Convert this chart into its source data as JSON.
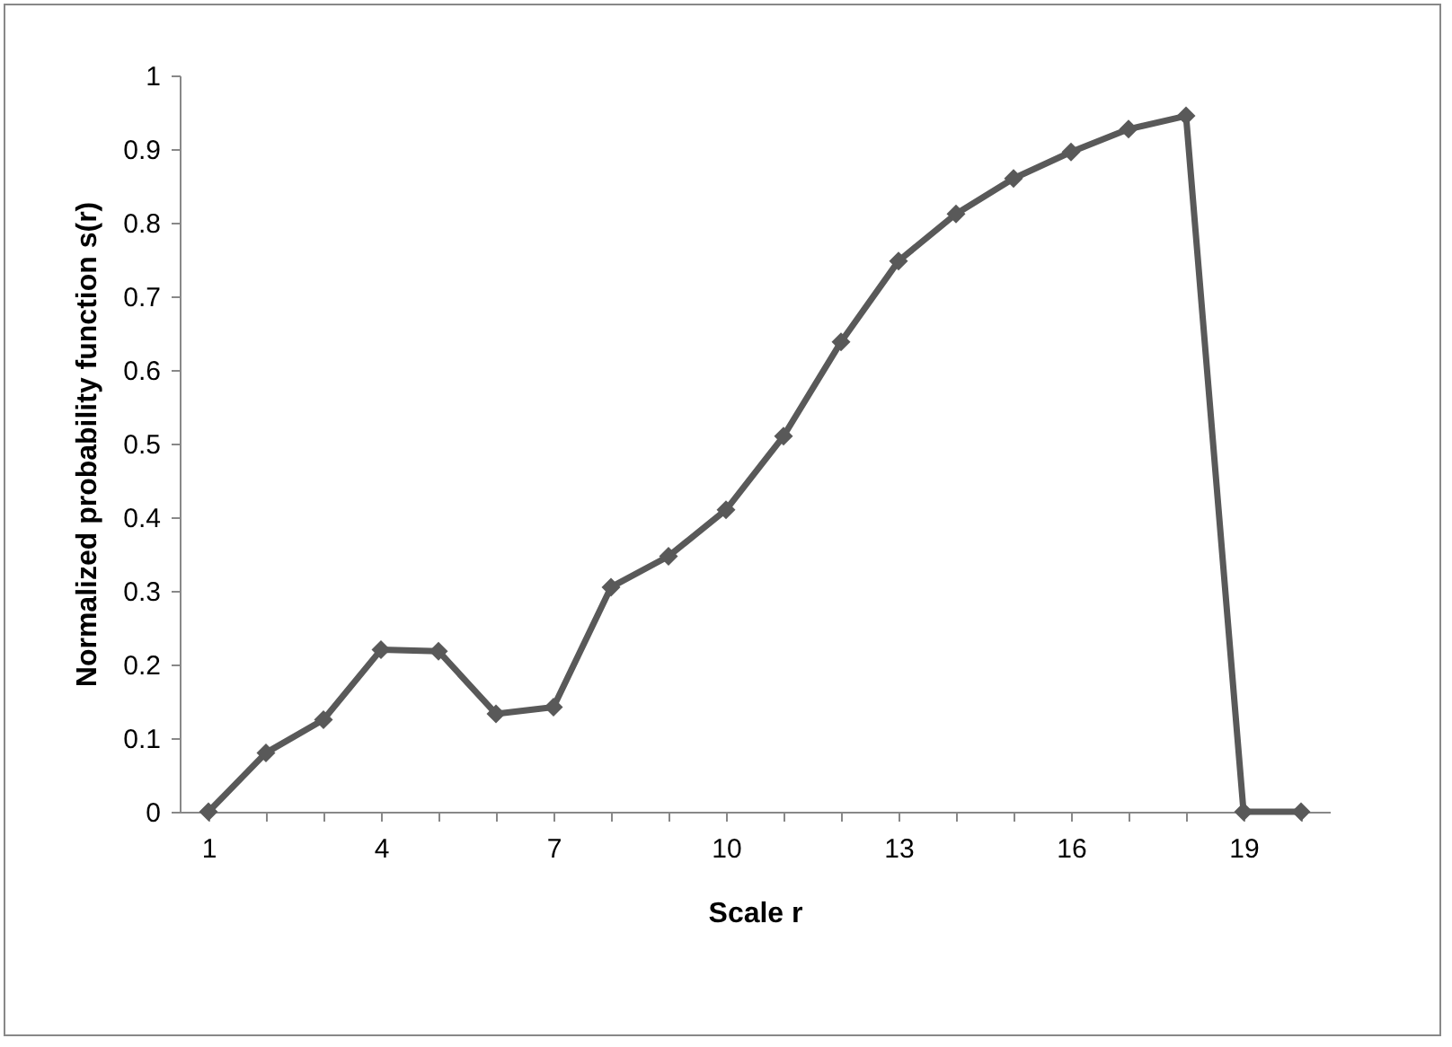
{
  "chart_data": {
    "type": "line",
    "xlabel": "Scale r",
    "ylabel": "Normalized probability function s(r)",
    "categories": [
      "1",
      null,
      null,
      "4",
      null,
      null,
      "7",
      null,
      null,
      "10",
      null,
      null,
      "13",
      null,
      null,
      "16",
      null,
      null,
      "19",
      null
    ],
    "series": [
      {
        "color": "#595959",
        "values": [
          0,
          0.08,
          0.125,
          0.22,
          0.218,
          0.133,
          0.142,
          0.305,
          0.347,
          0.41,
          0.51,
          0.638,
          0.748,
          0.812,
          0.86,
          0.896,
          0.927,
          0.945,
          0,
          0
        ]
      }
    ],
    "ylim": [
      0,
      1
    ],
    "yticks": [
      0,
      0.1,
      0.2,
      0.3,
      0.4,
      0.5,
      0.6,
      0.7,
      0.8,
      0.9,
      1
    ],
    "grid": false,
    "marker": "diamond",
    "line_style": "solid"
  }
}
